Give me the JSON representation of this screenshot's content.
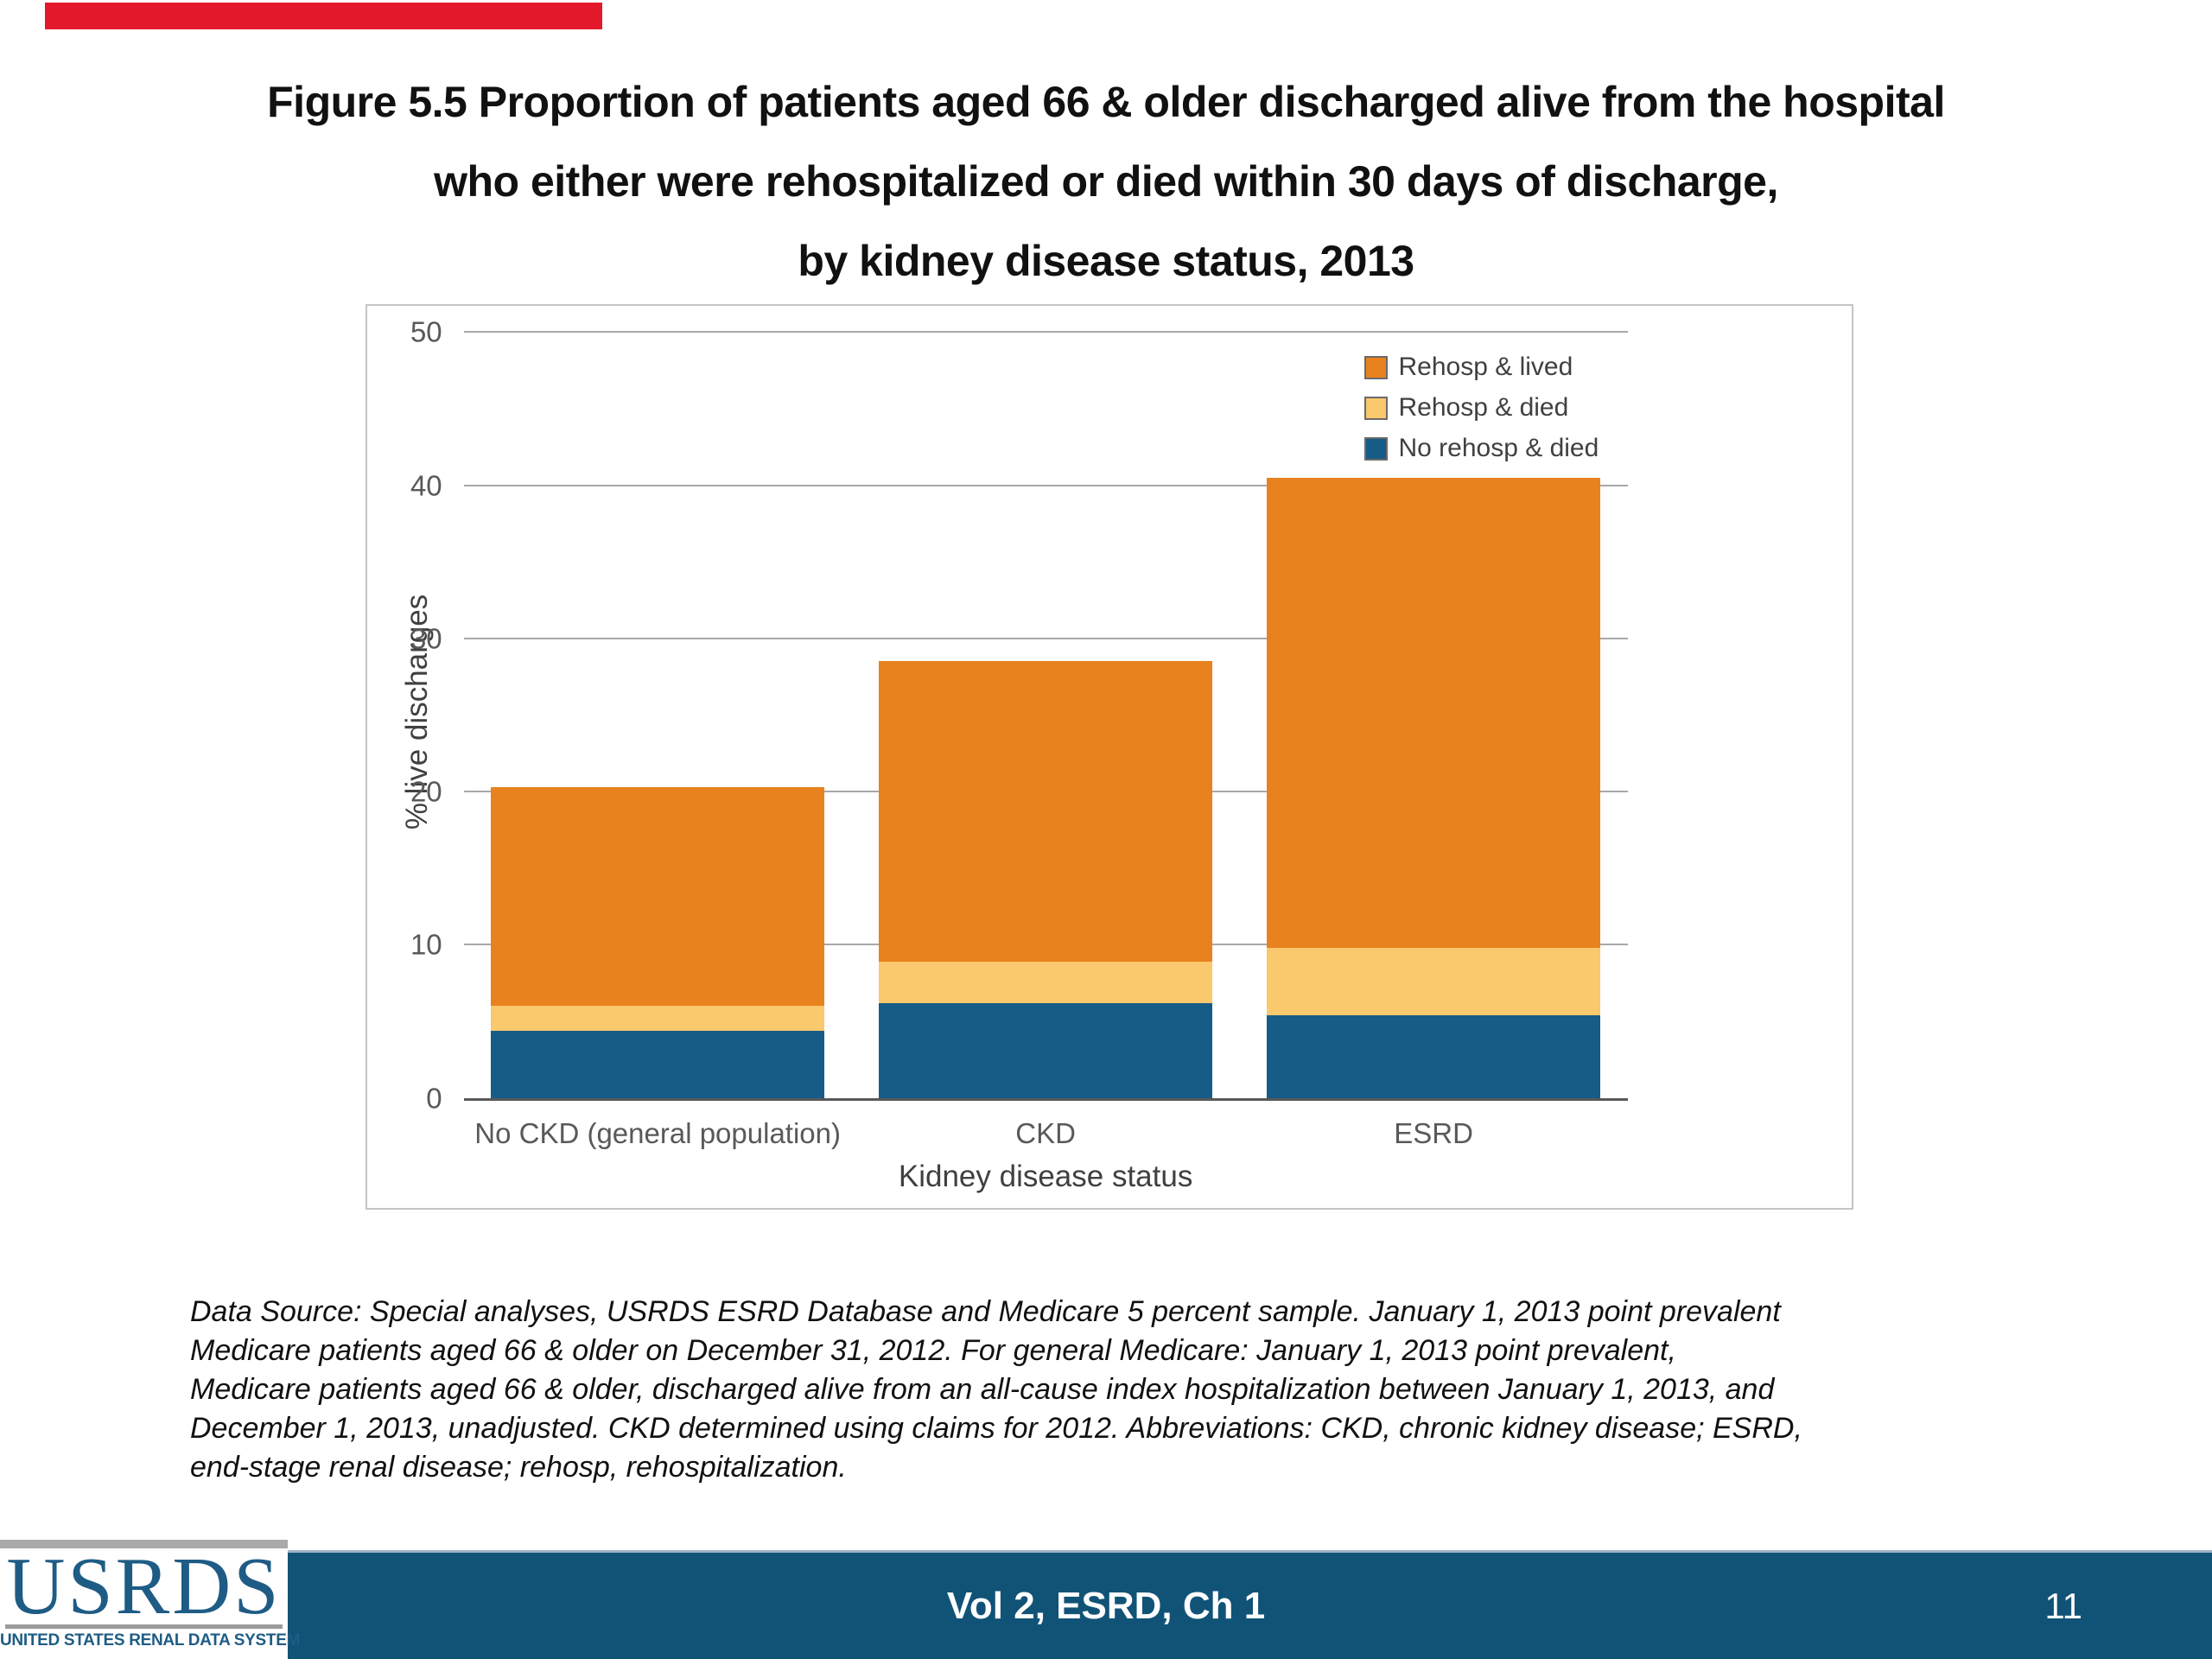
{
  "slide": {
    "title_lines": [
      "Figure 5.5 Proportion of patients aged 66 & older discharged alive from the hospital",
      "who either were rehospitalized or died within 30 days of discharge,",
      "by kidney disease status, 2013"
    ]
  },
  "chart_data": {
    "type": "bar",
    "subtype": "stacked",
    "categories": [
      "No CKD (general population)",
      "CKD",
      "ESRD"
    ],
    "series": [
      {
        "name": "No rehosp & died",
        "color": "#175c87",
        "values": [
          4.4,
          6.2,
          5.4
        ]
      },
      {
        "name": "Rehosp & died",
        "color": "#fac86d",
        "values": [
          1.6,
          2.7,
          4.4
        ]
      },
      {
        "name": "Rehosp & lived",
        "color": "#e8821e",
        "values": [
          14.3,
          19.6,
          30.7
        ]
      }
    ],
    "totals": [
      20.3,
      28.5,
      40.5
    ],
    "legend": [
      {
        "label": "Rehosp & lived",
        "color": "#e8821e"
      },
      {
        "label": "Rehosp & died",
        "color": "#fac86d"
      },
      {
        "label": "No rehosp & died",
        "color": "#175c87"
      }
    ],
    "xlabel": "Kidney disease status",
    "ylabel": "% live discharges",
    "ylim": [
      0,
      50
    ],
    "yticks": [
      0,
      10,
      20,
      30,
      40,
      50
    ],
    "grid": true,
    "legend_position": "top-right"
  },
  "footnote": {
    "lines": [
      "Data Source: Special analyses, USRDS ESRD Database and Medicare 5 percent sample. January 1, 2013 point prevalent",
      "Medicare patients aged 66 & older on December 31, 2012. For general Medicare: January 1, 2013 point prevalent,",
      "Medicare patients aged 66 & older, discharged alive from an all-cause index hospitalization between January 1, 2013, and",
      "December 1, 2013, unadjusted. CKD determined using claims for 2012. Abbreviations: CKD, chronic kidney disease; ESRD,",
      "end-stage renal disease; rehosp, rehospitalization."
    ]
  },
  "footer": {
    "center_label": "Vol 2, ESRD, Ch 1",
    "page_number": "11"
  },
  "logo": {
    "acronym": "USRDS",
    "caption": "UNITED STATES RENAL DATA SYSTEM"
  },
  "colors": {
    "series_orange": "#e8821e",
    "series_gold": "#fac86d",
    "series_blue": "#175c87",
    "footer_blue": "#115377",
    "logo_blue": "#1e5c85",
    "accent_red": "#e3192b",
    "gridline_gray": "#a8a8a8",
    "axis_gray": "#595959"
  }
}
